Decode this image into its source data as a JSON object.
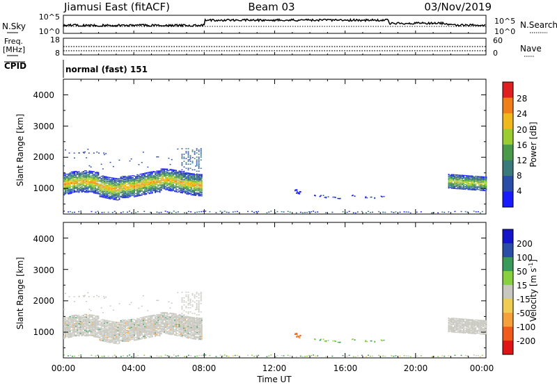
{
  "header": {
    "station": "Jiamusi East (fitACF)",
    "beam": "Beam 03",
    "date": "03/Nov/2019"
  },
  "panels": {
    "nsky": {
      "label": "N.Sky",
      "ticks": [
        "10^5",
        "10^0"
      ]
    },
    "nsearch": {
      "label": "N.Search",
      "ticks": [
        "10^5",
        "10^0"
      ]
    },
    "freq": {
      "label_lines": [
        "Freq.",
        "[MHz]"
      ],
      "ticks": [
        "18",
        "8"
      ]
    },
    "nave": {
      "label": "Nave",
      "ticks": [
        "60",
        "0"
      ]
    },
    "cpid": {
      "label": "CPID",
      "value": "normal (fast) 151"
    }
  },
  "colors": {
    "power": [
      "#1a1aff",
      "#2a4ea8",
      "#3a7a7a",
      "#4a9a4a",
      "#9acd32",
      "#f0b81a",
      "#f07f1a",
      "#e02020"
    ],
    "velocity": [
      "#e01414",
      "#f05a1a",
      "#f5a03a",
      "#f0cc55",
      "#c8c8c0",
      "#88d040",
      "#3a9a5a",
      "#2a4ea8",
      "#1414c8"
    ]
  },
  "chart_data": [
    {
      "type": "heatmap",
      "name": "power",
      "ylabel": "Slant Range [km]",
      "xlabel": "Time UT",
      "ylim": [
        180,
        4500
      ],
      "yticks": [
        "1000",
        "2000",
        "3000",
        "4000"
      ],
      "x_ticks": [
        "00:00",
        "04:00",
        "08:00",
        "12:00",
        "16:00",
        "20:00",
        "00:00"
      ],
      "colorbar": {
        "label": "Power [dB]",
        "ticks": [
          "4",
          "8",
          "12",
          "16",
          "20",
          "24",
          "28"
        ],
        "range": [
          0,
          32
        ]
      },
      "regions": [
        {
          "x_start": "00:00",
          "x_end": "07:50",
          "range_km": [
            900,
            1400
          ],
          "value": 20,
          "description": "main echo band"
        },
        {
          "x_start": "13:00",
          "x_end": "18:00",
          "range_km": [
            650,
            1000
          ],
          "value": 4,
          "description": "weak scatter"
        },
        {
          "x_start": "21:50",
          "x_end": "24:00",
          "range_km": [
            1050,
            1450
          ],
          "value": 16,
          "description": "evening echo band"
        }
      ]
    },
    {
      "type": "heatmap",
      "name": "velocity",
      "ylabel": "Slant Range [km]",
      "xlabel": "Time UT",
      "ylim": [
        180,
        4500
      ],
      "yticks": [
        "1000",
        "2000",
        "3000",
        "4000"
      ],
      "x_ticks": [
        "00:00",
        "04:00",
        "08:00",
        "12:00",
        "16:00",
        "20:00",
        "00:00"
      ],
      "colorbar": {
        "label_lines": [
          "Velocity [m s",
          "-1",
          "]"
        ],
        "ticks": [
          "200",
          "100",
          "50",
          "15",
          "-15",
          "-50",
          "-100",
          "-200"
        ],
        "range": [
          -250,
          250
        ]
      },
      "regions": [
        {
          "x_start": "00:00",
          "x_end": "07:50",
          "range_km": [
            900,
            1400
          ],
          "value": 0,
          "description": "near-zero velocity band"
        },
        {
          "x_start": "13:00",
          "x_end": "13:30",
          "range_km": [
            850,
            1000
          ],
          "value": -100
        },
        {
          "x_start": "14:00",
          "x_end": "18:00",
          "range_km": [
            650,
            800
          ],
          "value": 50
        },
        {
          "x_start": "21:50",
          "x_end": "24:00",
          "range_km": [
            1050,
            1450
          ],
          "value": 0
        }
      ]
    }
  ]
}
